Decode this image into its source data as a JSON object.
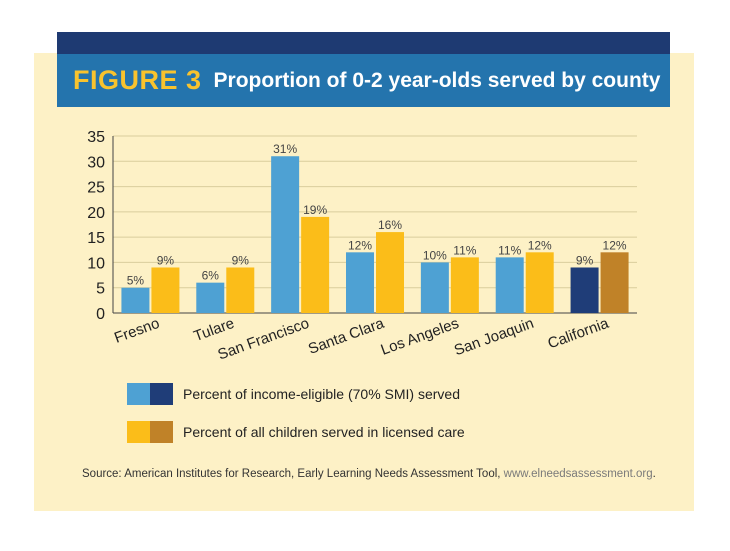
{
  "header": {
    "figure_number": "FIGURE 3",
    "title": "Proportion of 0-2 year-olds served by county"
  },
  "colors": {
    "panel_bg": "#fdf1c6",
    "title_bg": "#2474ad",
    "top_band": "#1e3a72",
    "series1_county": "#4ea1d3",
    "series2_county": "#fbbd19",
    "series1_state": "#1f3d78",
    "series2_state": "#c08228"
  },
  "chart_data": {
    "type": "bar",
    "title": "Proportion of 0-2 year-olds served by county",
    "categories": [
      "Fresno",
      "Tulare",
      "San Francisco",
      "Santa Clara",
      "Los Angeles",
      "San Joaquin",
      "California"
    ],
    "series": [
      {
        "name": "Percent of income-eligible (70% SMI) served",
        "values": [
          5,
          6,
          31,
          12,
          10,
          11,
          9
        ],
        "labels": [
          "5%",
          "6%",
          "31%",
          "12%",
          "10%",
          "11%",
          "9%"
        ]
      },
      {
        "name": "Percent of all children served in licensed care",
        "values": [
          9,
          9,
          19,
          16,
          11,
          12,
          12
        ],
        "labels": [
          "9%",
          "9%",
          "19%",
          "16%",
          "11%",
          "12%",
          "12%"
        ]
      }
    ],
    "yticks": [
      0,
      5,
      10,
      15,
      20,
      25,
      30,
      35
    ],
    "ylim": [
      0,
      35
    ],
    "xlabel": "",
    "ylabel": "",
    "grid": true,
    "legend_position": "bottom-left"
  },
  "source": {
    "text": "Source:  American Institutes for Research, Early Learning Needs Assessment Tool, ",
    "url": "www.elneedsassessment.org",
    "end": "."
  }
}
